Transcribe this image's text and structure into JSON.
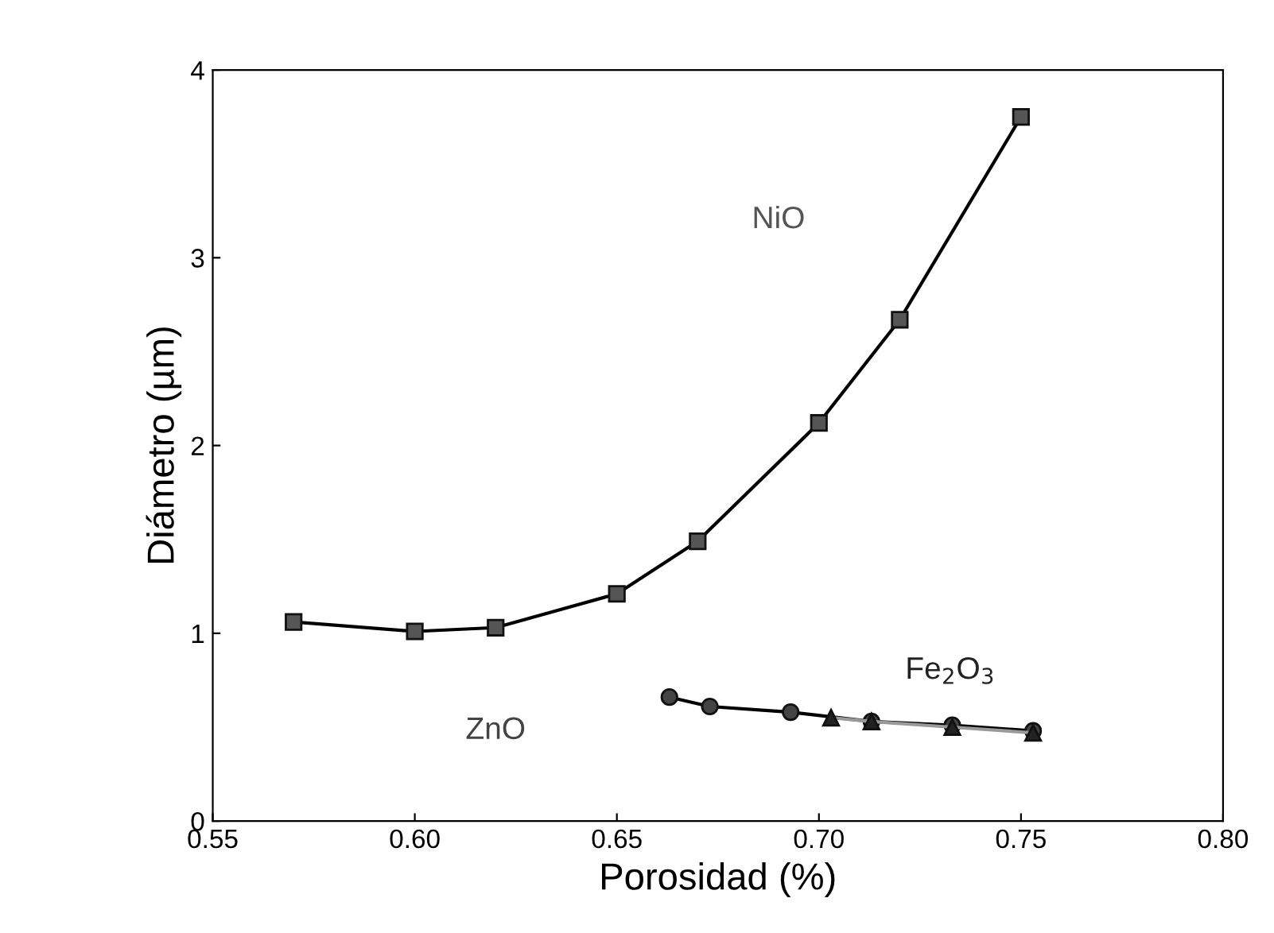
{
  "chart_data": {
    "type": "line",
    "xlabel": "Porosidad (%)",
    "ylabel": "Diámetro (µm)",
    "xlim": [
      0.55,
      0.8
    ],
    "xticks": [
      {
        "value": 0.55,
        "label": "0.55"
      },
      {
        "value": 0.6,
        "label": "0.60"
      },
      {
        "value": 0.65,
        "label": "0.65"
      },
      {
        "value": 0.7,
        "label": "0.70"
      },
      {
        "value": 0.75,
        "label": "0.75"
      },
      {
        "value": 0.8,
        "label": "0.80"
      }
    ],
    "ylim": [
      0,
      4
    ],
    "yticks": [
      0,
      1,
      2,
      3,
      4
    ],
    "grid": false,
    "legend": false,
    "series": [
      {
        "x": [
          0.57,
          0.6,
          0.62,
          0.65,
          0.67,
          0.7,
          0.72,
          0.75
        ],
        "name": "NiO",
        "values": [
          1.06,
          1.01,
          1.03,
          1.21,
          1.49,
          2.12,
          2.67,
          3.75
        ],
        "color": "#555555",
        "marker": "square"
      },
      {
        "x": [
          0.663,
          0.673,
          0.693,
          0.713,
          0.733,
          0.753
        ],
        "name": "ZnO",
        "values": [
          0.66,
          0.61,
          0.58,
          0.53,
          0.51,
          0.48
        ],
        "color": "#444444",
        "marker": "circle"
      },
      {
        "x": [
          0.703,
          0.713,
          0.733,
          0.753
        ],
        "name": "Fe$_{2}$O$_{3}$",
        "values": [
          0.55,
          0.53,
          0.5,
          0.47
        ],
        "color": "#222222",
        "marker": "triangle"
      }
    ]
  }
}
